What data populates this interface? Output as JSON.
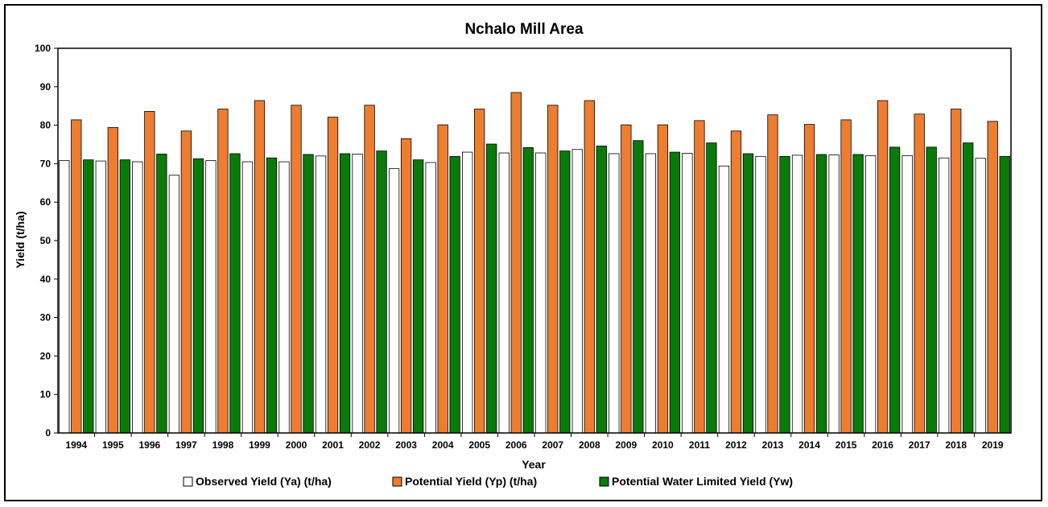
{
  "chart_data": {
    "type": "bar",
    "title": "Nchalo Mill Area",
    "xlabel": "Year",
    "ylabel": "Yield (t/ha)",
    "ylim": [
      0,
      100
    ],
    "yticks": [
      0,
      10,
      20,
      30,
      40,
      50,
      60,
      70,
      80,
      90,
      100
    ],
    "grid": false,
    "legend_position": "bottom",
    "categories": [
      "1994",
      "1995",
      "1996",
      "1997",
      "1998",
      "1999",
      "2000",
      "2001",
      "2002",
      "2003",
      "2004",
      "2005",
      "2006",
      "2007",
      "2008",
      "2009",
      "2010",
      "2011",
      "2012",
      "2013",
      "2014",
      "2015",
      "2016",
      "2017",
      "2018",
      "2019"
    ],
    "series": [
      {
        "name": "Observed Yield (Ya) (t/ha)",
        "color": "#ffffff",
        "values": [
          70.8,
          70.7,
          70.5,
          67.0,
          70.8,
          70.5,
          70.5,
          72.0,
          72.5,
          68.7,
          70.3,
          73.0,
          72.8,
          72.8,
          73.7,
          72.6,
          72.6,
          72.7,
          69.4,
          71.9,
          72.2,
          72.3,
          72.1,
          72.1,
          71.5,
          71.4
        ]
      },
      {
        "name": "Potential Yield (Yp) (t/ha)",
        "color": "#ed7d31",
        "values": [
          81.4,
          79.4,
          83.6,
          78.5,
          84.2,
          86.4,
          85.2,
          82.1,
          85.2,
          76.5,
          80.1,
          84.2,
          88.5,
          85.2,
          86.4,
          80.1,
          80.1,
          81.2,
          78.5,
          82.7,
          80.2,
          81.4,
          86.4,
          82.9,
          84.2,
          81.0
        ]
      },
      {
        "name": "Potential Water Limited Yield (Yw)",
        "color": "#0a7a0a",
        "values": [
          71.0,
          71.0,
          72.5,
          71.3,
          72.6,
          71.5,
          72.4,
          72.6,
          73.3,
          71.0,
          71.9,
          75.1,
          74.2,
          73.3,
          74.6,
          76.0,
          73.0,
          75.4,
          72.6,
          71.9,
          72.4,
          72.4,
          74.3,
          74.3,
          75.4,
          71.9
        ]
      }
    ]
  }
}
